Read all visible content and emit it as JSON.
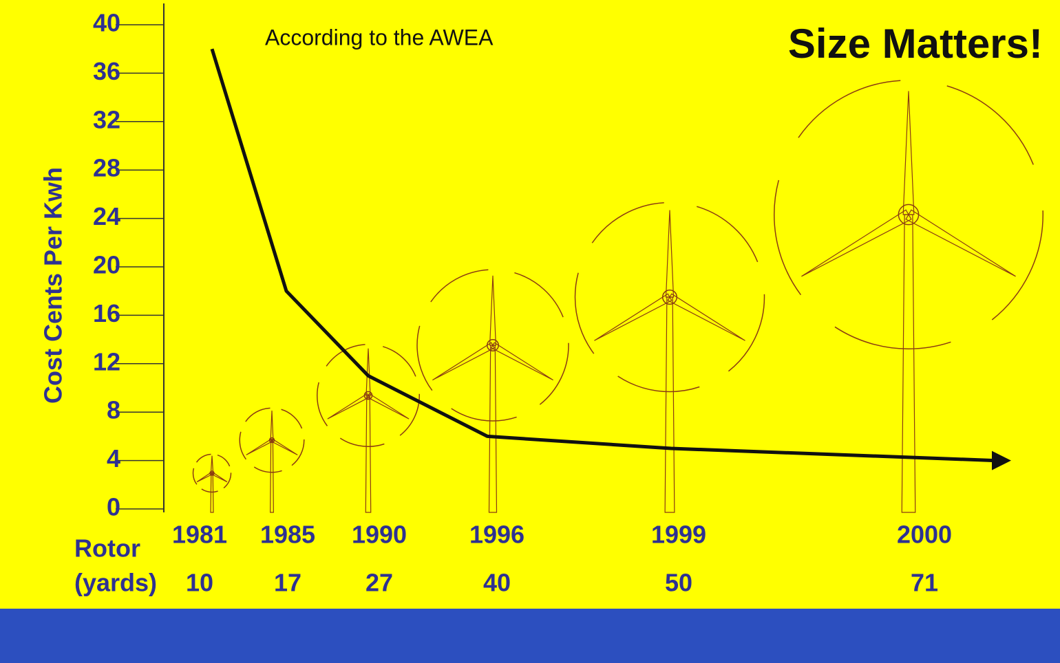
{
  "chart_data": {
    "type": "line",
    "title": "Size Matters!",
    "subtitle": "According to the AWEA",
    "y_label": "Cost Cents Per Kwh",
    "categories": [
      "1981",
      "1985",
      "1990",
      "1996",
      "1999",
      "2000"
    ],
    "values": [
      38,
      18,
      11,
      6,
      5,
      4
    ],
    "color": "#111111",
    "ylim": [
      0,
      40
    ],
    "yticks": [
      0,
      4,
      8,
      12,
      16,
      20,
      24,
      28,
      32,
      36,
      40
    ],
    "rotor_label": [
      "Rotor",
      "(yards)"
    ],
    "rotor_sizes": [
      10,
      17,
      27,
      40,
      50,
      71
    ],
    "turbine_color": "#8a3b12"
  }
}
